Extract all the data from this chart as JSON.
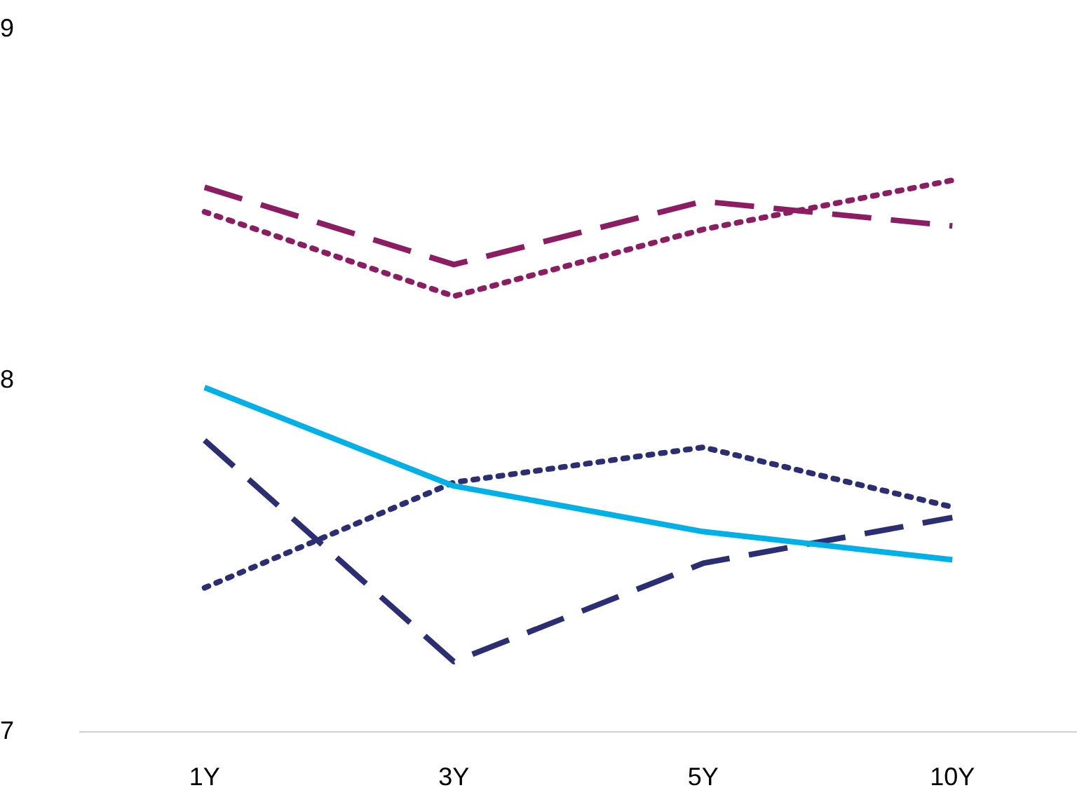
{
  "chart_data": {
    "type": "line",
    "categories": [
      "1Y",
      "3Y",
      "5Y",
      "10Y"
    ],
    "ylim": [
      7,
      9
    ],
    "yticks": [
      7,
      8,
      9
    ],
    "grid": false,
    "legend": false,
    "marker": "none",
    "series": [
      {
        "color": "#8c1d62",
        "line_style": "dashed",
        "values": [
          8.55,
          8.33,
          8.51,
          8.44
        ]
      },
      {
        "color": "#8c1d62",
        "line_style": "dotted",
        "values": [
          8.48,
          8.24,
          8.43,
          8.57
        ]
      },
      {
        "color": "#00b0e6",
        "line_style": "solid",
        "values": [
          7.98,
          7.7,
          7.57,
          7.49
        ]
      },
      {
        "color": "#2b2e72",
        "line_style": "dashed",
        "values": [
          7.83,
          7.2,
          7.48,
          7.61
        ]
      },
      {
        "color": "#2b2e72",
        "line_style": "dotted",
        "values": [
          7.41,
          7.71,
          7.81,
          7.64
        ]
      }
    ]
  }
}
